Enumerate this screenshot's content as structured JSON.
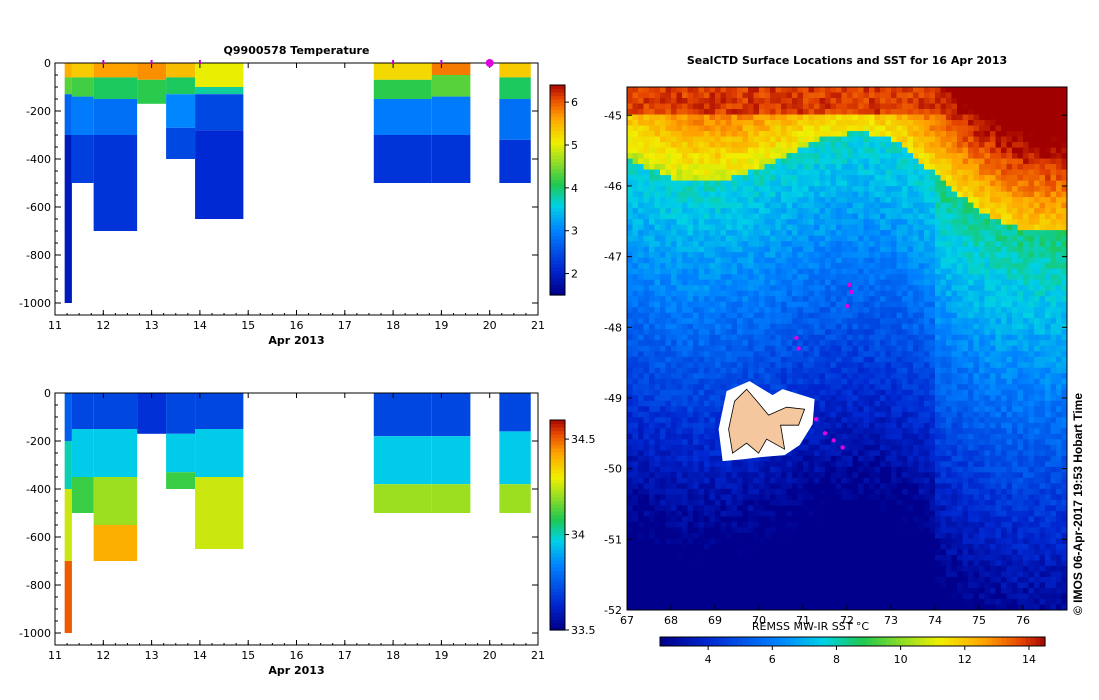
{
  "chart_data": [
    {
      "type": "heatmap",
      "title": "Q9900578  Temperature",
      "xlabel": "Apr 2013",
      "x_ticks": [
        "11",
        "12",
        "13",
        "14",
        "15",
        "16",
        "17",
        "18",
        "19",
        "20",
        "21"
      ],
      "y_ticks": [
        "0",
        "-200",
        "-400",
        "-600",
        "-800",
        "-1000"
      ],
      "xlim": [
        11,
        21
      ],
      "ylim": [
        -1050,
        0
      ],
      "colorbar_ticks": [
        "2",
        "3",
        "4",
        "5",
        "6"
      ],
      "colorbar_range": [
        1.5,
        6.4
      ],
      "profile_markers": [
        12,
        13,
        14,
        18,
        19,
        20
      ],
      "profiles": [
        {
          "x0": 11.2,
          "x1": 11.35,
          "bottom": -1000,
          "bands": [
            [
              0,
              -60,
              5.5
            ],
            [
              -60,
              -130,
              4.3
            ],
            [
              -130,
              -300,
              2.7
            ],
            [
              -300,
              -1000,
              1.9
            ]
          ]
        },
        {
          "x0": 11.35,
          "x1": 11.8,
          "bottom": -500,
          "bands": [
            [
              0,
              -60,
              5.3
            ],
            [
              -60,
              -140,
              4.2
            ],
            [
              -140,
              -300,
              2.9
            ],
            [
              -300,
              -500,
              2.3
            ]
          ]
        },
        {
          "x0": 11.8,
          "x1": 12.7,
          "bottom": -700,
          "bands": [
            [
              0,
              -60,
              5.6
            ],
            [
              -60,
              -150,
              4.0
            ],
            [
              -150,
              -300,
              2.8
            ],
            [
              -300,
              -700,
              2.2
            ]
          ]
        },
        {
          "x0": 12.7,
          "x1": 13.3,
          "bottom": -170,
          "bands": [
            [
              0,
              -70,
              5.7
            ],
            [
              -70,
              -170,
              4.1
            ]
          ]
        },
        {
          "x0": 13.3,
          "x1": 13.9,
          "bottom": -400,
          "bands": [
            [
              0,
              -60,
              5.4
            ],
            [
              -60,
              -130,
              4.0
            ],
            [
              -130,
              -270,
              3.0
            ],
            [
              -270,
              -400,
              2.4
            ]
          ]
        },
        {
          "x0": 13.9,
          "x1": 14.9,
          "bottom": -650,
          "bands": [
            [
              0,
              -100,
              5.0
            ],
            [
              -100,
              -130,
              3.8
            ],
            [
              -130,
              -280,
              2.4
            ],
            [
              -280,
              -650,
              2.1
            ]
          ]
        },
        {
          "x0": 17.6,
          "x1": 18.8,
          "bottom": -500,
          "bands": [
            [
              0,
              -70,
              5.2
            ],
            [
              -70,
              -150,
              4.1
            ],
            [
              -150,
              -300,
              2.9
            ],
            [
              -300,
              -500,
              2.2
            ]
          ]
        },
        {
          "x0": 18.8,
          "x1": 19.6,
          "bottom": -500,
          "bands": [
            [
              0,
              -50,
              5.8
            ],
            [
              -50,
              -140,
              4.3
            ],
            [
              -140,
              -300,
              2.9
            ],
            [
              -300,
              -500,
              2.2
            ]
          ]
        },
        {
          "x0": 20.2,
          "x1": 20.85,
          "bottom": -500,
          "bands": [
            [
              0,
              -60,
              5.3
            ],
            [
              -60,
              -150,
              4.0
            ],
            [
              -150,
              -320,
              2.8
            ],
            [
              -320,
              -500,
              2.2
            ]
          ]
        }
      ]
    },
    {
      "type": "heatmap",
      "title": "",
      "xlabel": "Apr 2013",
      "x_ticks": [
        "11",
        "12",
        "13",
        "14",
        "15",
        "16",
        "17",
        "18",
        "19",
        "20",
        "21"
      ],
      "y_ticks": [
        "0",
        "-200",
        "-400",
        "-600",
        "-800",
        "-1000"
      ],
      "xlim": [
        11,
        21
      ],
      "ylim": [
        -1050,
        0
      ],
      "colorbar_ticks": [
        "33.5",
        "34",
        "34.5"
      ],
      "colorbar_range": [
        33.5,
        34.6
      ],
      "profiles": [
        {
          "x0": 11.2,
          "x1": 11.35,
          "bottom": -1000,
          "bands": [
            [
              0,
              -200,
              33.75
            ],
            [
              -200,
              -400,
              34.0
            ],
            [
              -400,
              -700,
              34.25
            ],
            [
              -700,
              -1000,
              34.5
            ]
          ]
        },
        {
          "x0": 11.35,
          "x1": 11.8,
          "bottom": -500,
          "bands": [
            [
              0,
              -150,
              33.7
            ],
            [
              -150,
              -350,
              33.95
            ],
            [
              -350,
              -500,
              34.1
            ]
          ]
        },
        {
          "x0": 11.8,
          "x1": 12.7,
          "bottom": -700,
          "bands": [
            [
              0,
              -150,
              33.7
            ],
            [
              -150,
              -350,
              33.95
            ],
            [
              -350,
              -550,
              34.2
            ],
            [
              -550,
              -700,
              34.4
            ]
          ]
        },
        {
          "x0": 12.7,
          "x1": 13.3,
          "bottom": -170,
          "bands": [
            [
              0,
              -170,
              33.65
            ]
          ]
        },
        {
          "x0": 13.3,
          "x1": 13.9,
          "bottom": -400,
          "bands": [
            [
              0,
              -170,
              33.7
            ],
            [
              -170,
              -330,
              33.95
            ],
            [
              -330,
              -400,
              34.1
            ]
          ]
        },
        {
          "x0": 13.9,
          "x1": 14.9,
          "bottom": -650,
          "bands": [
            [
              0,
              -150,
              33.7
            ],
            [
              -150,
              -350,
              33.95
            ],
            [
              -350,
              -650,
              34.25
            ]
          ]
        },
        {
          "x0": 17.6,
          "x1": 18.8,
          "bottom": -500,
          "bands": [
            [
              0,
              -180,
              33.7
            ],
            [
              -180,
              -380,
              33.95
            ],
            [
              -380,
              -500,
              34.2
            ]
          ]
        },
        {
          "x0": 18.8,
          "x1": 19.6,
          "bottom": -500,
          "bands": [
            [
              0,
              -180,
              33.7
            ],
            [
              -180,
              -380,
              33.95
            ],
            [
              -380,
              -500,
              34.2
            ]
          ]
        },
        {
          "x0": 20.2,
          "x1": 20.85,
          "bottom": -500,
          "bands": [
            [
              0,
              -160,
              33.7
            ],
            [
              -160,
              -380,
              33.95
            ],
            [
              -380,
              -500,
              34.2
            ]
          ]
        }
      ]
    },
    {
      "type": "heatmap",
      "title": "SealCTD Surface Locations and SST for 16 Apr 2013",
      "colorbar_label": "REMSS MW-IR SST °C",
      "x_ticks": [
        "67",
        "68",
        "69",
        "70",
        "71",
        "72",
        "73",
        "74",
        "75",
        "76"
      ],
      "y_ticks": [
        "-45",
        "-46",
        "-47",
        "-48",
        "-49",
        "-50",
        "-51",
        "-52"
      ],
      "xlim": [
        67,
        77
      ],
      "ylim": [
        -52,
        -44.6
      ],
      "colorbar_ticks": [
        "4",
        "6",
        "8",
        "10",
        "12",
        "14"
      ],
      "colorbar_range": [
        2.5,
        14.5
      ],
      "seal_positions": [
        [
          72.1,
          -47.5
        ],
        [
          72.05,
          -47.4
        ],
        [
          72.0,
          -47.7
        ],
        [
          70.85,
          -48.15
        ],
        [
          70.9,
          -48.3
        ],
        [
          71.3,
          -49.3
        ],
        [
          71.5,
          -49.5
        ],
        [
          71.7,
          -49.6
        ],
        [
          71.9,
          -49.7
        ]
      ],
      "sst_rows": [
        {
          "lat": -45.0,
          "lonSplit": [
            [
              67,
              13.5
            ],
            [
              77,
              13.5
            ]
          ]
        }
      ]
    }
  ],
  "credit": "© IMOS 06-Apr-2017 19:53 Hobart Time"
}
